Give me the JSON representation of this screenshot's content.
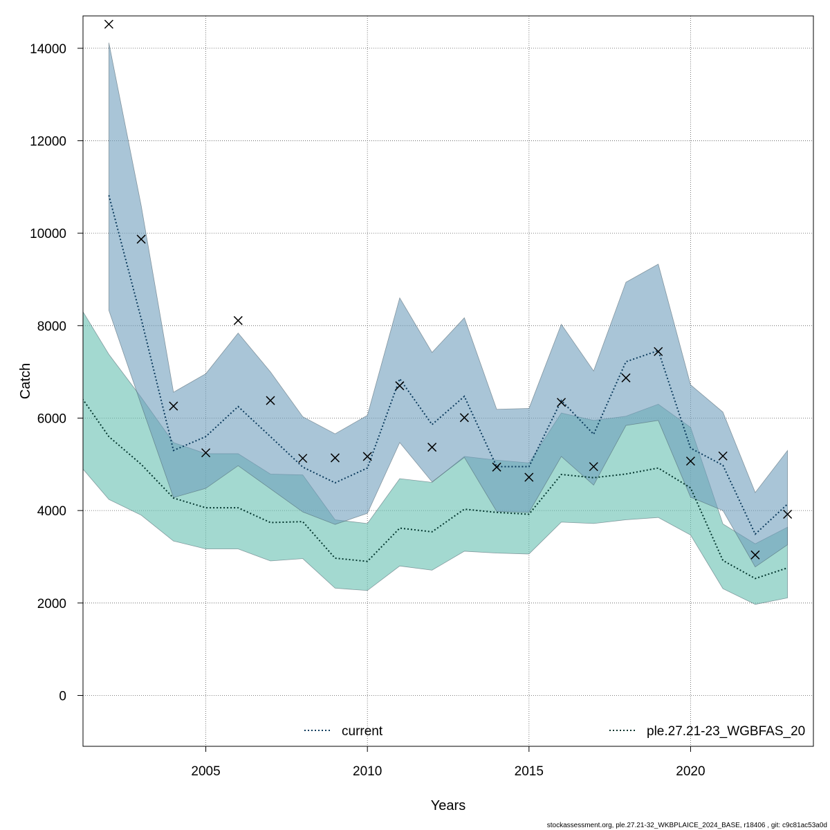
{
  "chart_data": {
    "type": "line",
    "xlabel": "Years",
    "ylabel": "Catch",
    "xlim": [
      2001.2,
      2023.8
    ],
    "ylim": [
      -1100,
      14700
    ],
    "xticks": [
      2005,
      2010,
      2015,
      2020
    ],
    "yticks": [
      0,
      2000,
      4000,
      6000,
      8000,
      10000,
      12000,
      14000
    ],
    "grid": true,
    "legend_placement": "bottom",
    "series": [
      {
        "name": "ple.27.21-23_WGBFAS_20",
        "line_color": "#00332b",
        "band_color": "#66bfb0",
        "x": [
          2001,
          2002,
          2003,
          2004,
          2005,
          2006,
          2007,
          2008,
          2009,
          2010,
          2011,
          2012,
          2013,
          2014,
          2015,
          2016,
          2017,
          2018,
          2019,
          2020,
          2021,
          2022,
          2023
        ],
        "values": [
          6600,
          5600,
          5000,
          4270,
          4060,
          4060,
          3740,
          3760,
          2970,
          2900,
          3620,
          3540,
          4030,
          3960,
          3920,
          4780,
          4710,
          4790,
          4920,
          4490,
          2920,
          2530,
          2760
        ],
        "lower": [
          5060,
          4240,
          3900,
          3340,
          3170,
          3170,
          2910,
          2960,
          2320,
          2270,
          2800,
          2710,
          3120,
          3080,
          3060,
          3750,
          3720,
          3800,
          3850,
          3470,
          2310,
          1970,
          2110
        ],
        "upper": [
          8530,
          7380,
          6450,
          5470,
          5230,
          5230,
          4790,
          4770,
          3800,
          3720,
          4690,
          4610,
          5170,
          5090,
          5030,
          6110,
          5950,
          6040,
          6300,
          5800,
          3710,
          3280,
          3640
        ]
      },
      {
        "name": "current",
        "line_color": "#0a3a5c",
        "band_color": "#6f9fbd",
        "x": [
          2002,
          2003,
          2004,
          2005,
          2006,
          2007,
          2008,
          2009,
          2010,
          2011,
          2012,
          2013,
          2014,
          2015,
          2016,
          2017,
          2018,
          2019,
          2020,
          2021,
          2022,
          2023
        ],
        "values": [
          10820,
          8150,
          5300,
          5600,
          6250,
          5600,
          4940,
          4600,
          4920,
          6850,
          5860,
          6470,
          4950,
          4950,
          6380,
          5650,
          7220,
          7460,
          5350,
          4980,
          3490,
          4140
        ],
        "lower": [
          8330,
          6290,
          4280,
          4480,
          4970,
          4470,
          3970,
          3700,
          3940,
          5470,
          4620,
          5150,
          3980,
          3960,
          5170,
          4550,
          5840,
          5950,
          4290,
          4000,
          2780,
          3260
        ],
        "upper": [
          14120,
          10600,
          6560,
          6960,
          7840,
          7000,
          6030,
          5660,
          6060,
          8600,
          7420,
          8170,
          6190,
          6210,
          8030,
          7020,
          8940,
          9330,
          6720,
          6130,
          4390,
          5300
        ]
      }
    ],
    "observations": {
      "marker": "x",
      "x": [
        2002,
        2003,
        2004,
        2005,
        2006,
        2007,
        2008,
        2009,
        2010,
        2011,
        2012,
        2013,
        2014,
        2015,
        2016,
        2017,
        2018,
        2019,
        2020,
        2021,
        2022,
        2023
      ],
      "values": [
        14520,
        9870,
        6260,
        5250,
        8110,
        6380,
        5130,
        5140,
        5170,
        6700,
        5370,
        6010,
        4940,
        4720,
        6340,
        4950,
        6870,
        7440,
        5070,
        5180,
        3040,
        3920
      ]
    }
  },
  "legend": {
    "current": "current",
    "previous": "ple.27.21-23_WGBFAS_20"
  },
  "footer": "stockassessment.org, ple.27.21-32_WKBPLAICE_2024_BASE, r18406 , git: c9c81ac53a0d"
}
